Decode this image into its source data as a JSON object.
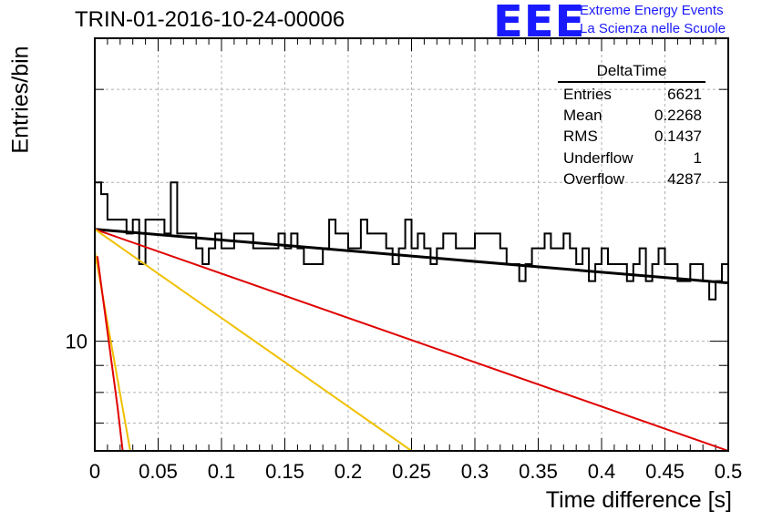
{
  "header": {
    "title": "TRIN-01-2016-10-24-00006",
    "logo_text": "EEE",
    "logo_line1": "Extreme Energy Events",
    "logo_line2": "La Scienza nelle Scuole"
  },
  "stats_box": {
    "title": "DeltaTime",
    "rows": [
      {
        "label": "Entries",
        "value": "6621"
      },
      {
        "label": "Mean",
        "value": "0.2268"
      },
      {
        "label": "RMS",
        "value": "0.1437"
      },
      {
        "label": "Underflow",
        "value": "1"
      },
      {
        "label": "Overflow",
        "value": "4287"
      }
    ]
  },
  "colors": {
    "histogram": "#000000",
    "fit_main": "#000000",
    "fit_red": "#e00000",
    "fit_yellow": "#f0c000",
    "grid": "#b0b0b0"
  },
  "chart_data": {
    "type": "histogram",
    "xlabel": "Time difference [s]",
    "ylabel": "Entries/bin",
    "xlim": [
      0,
      0.5
    ],
    "ylim": [
      6.2,
      37.5
    ],
    "yscale": "log",
    "grid": true,
    "x_ticks": [
      "0",
      "0.05",
      "0.1",
      "0.15",
      "0.2",
      "0.25",
      "0.3",
      "0.35",
      "0.4",
      "0.45",
      "0.5"
    ],
    "y_tick_labels": [
      {
        "value": 10,
        "label": "10"
      }
    ],
    "bin_width": 0.005,
    "bin_values": [
      20,
      19,
      17,
      17,
      17,
      16,
      17,
      14,
      17,
      17,
      17,
      16,
      20,
      16,
      16,
      16,
      15,
      14,
      15,
      16,
      15,
      15,
      16,
      16,
      16,
      15,
      15,
      15,
      15,
      16,
      15,
      16,
      15,
      14,
      14,
      14,
      15,
      17,
      16,
      16,
      15,
      15,
      17,
      16,
      16,
      16,
      15,
      14,
      15,
      17,
      15,
      16,
      15,
      14,
      15,
      16,
      16,
      15,
      15,
      15,
      16,
      16,
      16,
      16,
      15,
      14,
      14,
      13,
      14,
      15,
      15,
      16,
      15,
      15,
      16,
      15,
      14,
      15,
      13,
      14,
      15,
      14,
      14,
      14,
      13,
      14,
      15,
      13,
      14,
      15,
      14,
      14,
      13,
      13,
      14,
      14,
      13,
      12,
      13,
      14
    ],
    "fits": [
      {
        "color": "black",
        "points": [
          [
            0,
            16.3
          ],
          [
            0.5,
            12.9
          ]
        ]
      },
      {
        "color": "red",
        "points": [
          [
            0,
            16.3
          ],
          [
            0.5,
            6.2
          ]
        ]
      },
      {
        "color": "yellow",
        "points": [
          [
            0,
            16.3
          ],
          [
            0.25,
            6.2
          ]
        ]
      },
      {
        "color": "yellow",
        "points": [
          [
            0,
            14.8
          ],
          [
            0.028,
            6.2
          ]
        ]
      },
      {
        "color": "red",
        "points": [
          [
            0.002,
            14.5
          ],
          [
            0.018,
            7.5
          ],
          [
            0.022,
            6.2
          ]
        ]
      }
    ]
  }
}
